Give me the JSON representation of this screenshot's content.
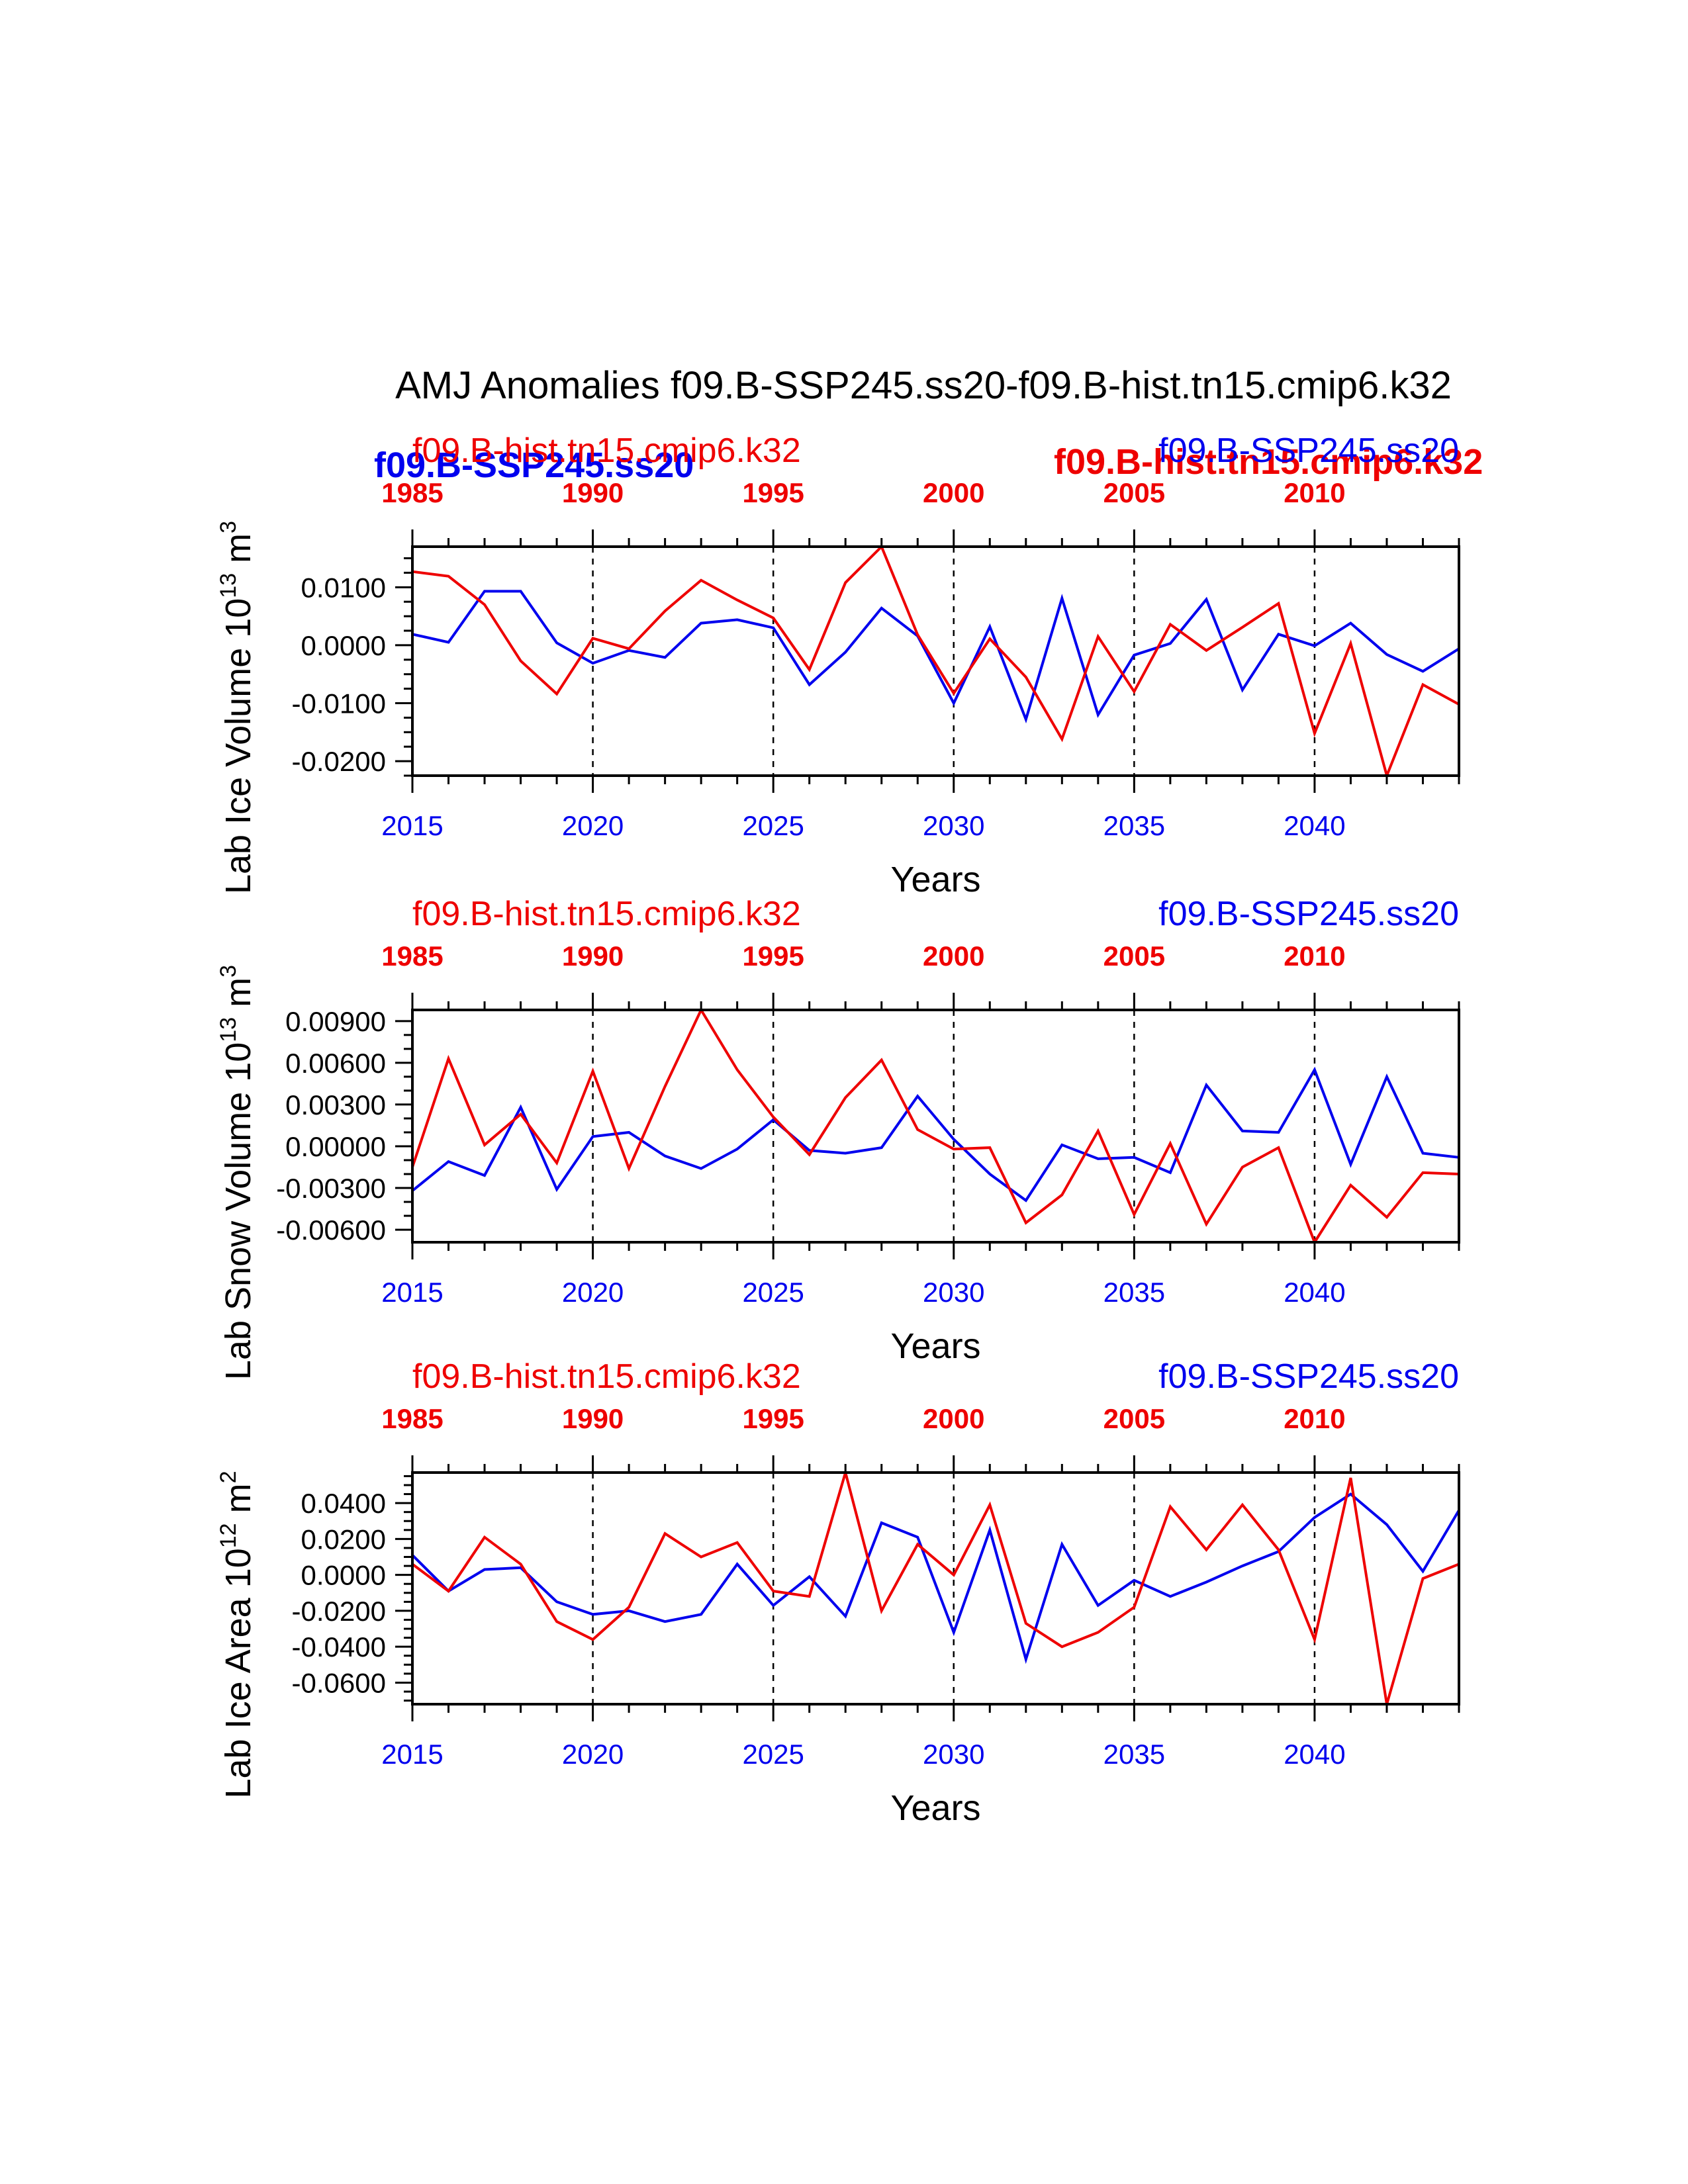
{
  "title": "AMJ Anomalies f09.B-SSP245.ss20-f09.B-hist.tn15.cmip6.k32",
  "colors": {
    "ssp": "#0000ee",
    "hist": "#ee0000",
    "axis": "#000000"
  },
  "overlay_labels": {
    "left_blue": "f09.B-SSP245.ss20",
    "right_red": "f09.B-hist.tn15.cmip6.k32"
  },
  "chart_data": [
    {
      "type": "line",
      "ylabel": "Lab Ice Volume 10",
      "ylabel_exp": "13",
      "ylabel_unit": " m",
      "ylabel_unit_exp": "3",
      "xlabel": "Years",
      "top_label": "f09.B-hist.tn15.cmip6.k32",
      "right_label": "f09.B-SSP245.ss20",
      "x_bottom_ticks": [
        "2015",
        "2020",
        "2025",
        "2030",
        "2035",
        "2040"
      ],
      "x_top_ticks": [
        "1985",
        "1990",
        "1995",
        "2000",
        "2005",
        "2010"
      ],
      "xlim": [
        2015,
        2044
      ],
      "ylim": [
        -0.0225,
        0.017
      ],
      "y_ticks": [
        0.01,
        0.0,
        -0.01,
        -0.02
      ],
      "y_tick_labels": [
        "0.0100",
        "0.0000",
        "-0.0100",
        "-0.0200"
      ],
      "y_minor": 0.0025,
      "series": [
        {
          "name": "f09.B-SSP245.ss20",
          "values": [
            0.0019,
            0.0005,
            0.0093,
            0.0093,
            0.0004,
            -0.0031,
            -0.0009,
            -0.0021,
            0.0038,
            0.0044,
            0.003,
            -0.0068,
            -0.0012,
            0.0064,
            0.0016,
            -0.01,
            0.0032,
            -0.0128,
            0.0081,
            -0.012,
            -0.0017,
            0.0003,
            0.0079,
            -0.0077,
            0.0019,
            -0.0001,
            0.0038,
            -0.0016,
            -0.0045,
            -0.0006
          ]
        },
        {
          "name": "f09.B-hist.tn15.cmip6.k32",
          "values": [
            0.0127,
            0.0119,
            0.007,
            -0.0027,
            -0.0084,
            0.0012,
            -0.0006,
            0.0059,
            0.0112,
            0.0078,
            0.0047,
            -0.0042,
            0.0108,
            0.017,
            0.0018,
            -0.0083,
            0.0011,
            -0.0055,
            -0.0162,
            0.0015,
            -0.008,
            0.0036,
            -0.0009,
            0.0031,
            0.0072,
            -0.0152,
            0.0003,
            -0.0225,
            -0.0068,
            -0.0102
          ]
        }
      ]
    },
    {
      "type": "line",
      "ylabel": "Lab Snow Volume 10",
      "ylabel_exp": "13",
      "ylabel_unit": " m",
      "ylabel_unit_exp": "3",
      "xlabel": "Years",
      "top_label": "f09.B-hist.tn15.cmip6.k32",
      "right_label": "f09.B-SSP245.ss20",
      "x_bottom_ticks": [
        "2015",
        "2020",
        "2025",
        "2030",
        "2035",
        "2040"
      ],
      "x_top_ticks": [
        "1985",
        "1990",
        "1995",
        "2000",
        "2005",
        "2010"
      ],
      "xlim": [
        2015,
        2044
      ],
      "ylim": [
        -0.0069,
        0.0098
      ],
      "y_ticks": [
        0.009,
        0.006,
        0.003,
        0.0,
        -0.003,
        -0.006
      ],
      "y_tick_labels": [
        "0.00900",
        "0.00600",
        "0.00300",
        "0.00000",
        "-0.00300",
        "-0.00600"
      ],
      "y_minor": 0.001,
      "series": [
        {
          "name": "f09.B-SSP245.ss20",
          "values": [
            -0.0032,
            -0.0011,
            -0.0021,
            0.0028,
            -0.0031,
            0.0007,
            0.001,
            -0.0007,
            -0.0016,
            -0.0002,
            0.0019,
            -0.0003,
            -0.0005,
            -0.0001,
            0.0036,
            0.0005,
            -0.002,
            -0.0039,
            0.0001,
            -0.0009,
            -0.0008,
            -0.0019,
            0.0044,
            0.0011,
            0.001,
            0.0055,
            -0.0013,
            0.005,
            -0.0005,
            -0.0008
          ]
        },
        {
          "name": "f09.B-hist.tn15.cmip6.k32",
          "values": [
            -0.0015,
            0.0063,
            0.0001,
            0.0023,
            -0.0012,
            0.0054,
            -0.0016,
            0.0043,
            0.0098,
            0.0055,
            0.0021,
            -0.0006,
            0.0035,
            0.0062,
            0.0012,
            -0.0002,
            -0.0001,
            -0.0055,
            -0.0035,
            0.0011,
            -0.0049,
            0.0002,
            -0.0056,
            -0.0015,
            -0.0001,
            -0.0069,
            -0.0028,
            -0.0051,
            -0.0019,
            -0.002
          ]
        }
      ]
    },
    {
      "type": "line",
      "ylabel": "Lab Ice Area 10",
      "ylabel_exp": "12",
      "ylabel_unit": " m",
      "ylabel_unit_exp": "2",
      "xlabel": "Years",
      "top_label": "f09.B-hist.tn15.cmip6.k32",
      "right_label": "f09.B-SSP245.ss20",
      "x_bottom_ticks": [
        "2015",
        "2020",
        "2025",
        "2030",
        "2035",
        "2040"
      ],
      "x_top_ticks": [
        "1985",
        "1990",
        "1995",
        "2000",
        "2005",
        "2010"
      ],
      "xlim": [
        2015,
        2044
      ],
      "ylim": [
        -0.072,
        0.057
      ],
      "y_ticks": [
        0.04,
        0.02,
        0.0,
        -0.02,
        -0.04,
        -0.06
      ],
      "y_tick_labels": [
        "0.0400",
        "0.0200",
        "0.0000",
        "-0.0200",
        "-0.0400",
        "-0.0600"
      ],
      "y_minor": 0.005,
      "series": [
        {
          "name": "f09.B-SSP245.ss20",
          "values": [
            0.011,
            -0.009,
            0.003,
            0.004,
            -0.015,
            -0.022,
            -0.02,
            -0.026,
            -0.022,
            0.006,
            -0.017,
            -0.001,
            -0.023,
            0.029,
            0.021,
            -0.032,
            0.025,
            -0.047,
            0.017,
            -0.017,
            -0.003,
            -0.012,
            -0.004,
            0.005,
            0.013,
            0.032,
            0.045,
            0.028,
            0.002,
            0.036
          ]
        },
        {
          "name": "f09.B-hist.tn15.cmip6.k32",
          "values": [
            0.006,
            -0.009,
            0.021,
            0.006,
            -0.026,
            -0.036,
            -0.018,
            0.023,
            0.01,
            0.018,
            -0.009,
            -0.012,
            0.057,
            -0.02,
            0.017,
            0.0,
            0.039,
            -0.027,
            -0.04,
            -0.032,
            -0.018,
            0.038,
            0.014,
            0.039,
            0.014,
            -0.036,
            0.054,
            -0.072,
            -0.002,
            0.006
          ]
        }
      ]
    }
  ]
}
